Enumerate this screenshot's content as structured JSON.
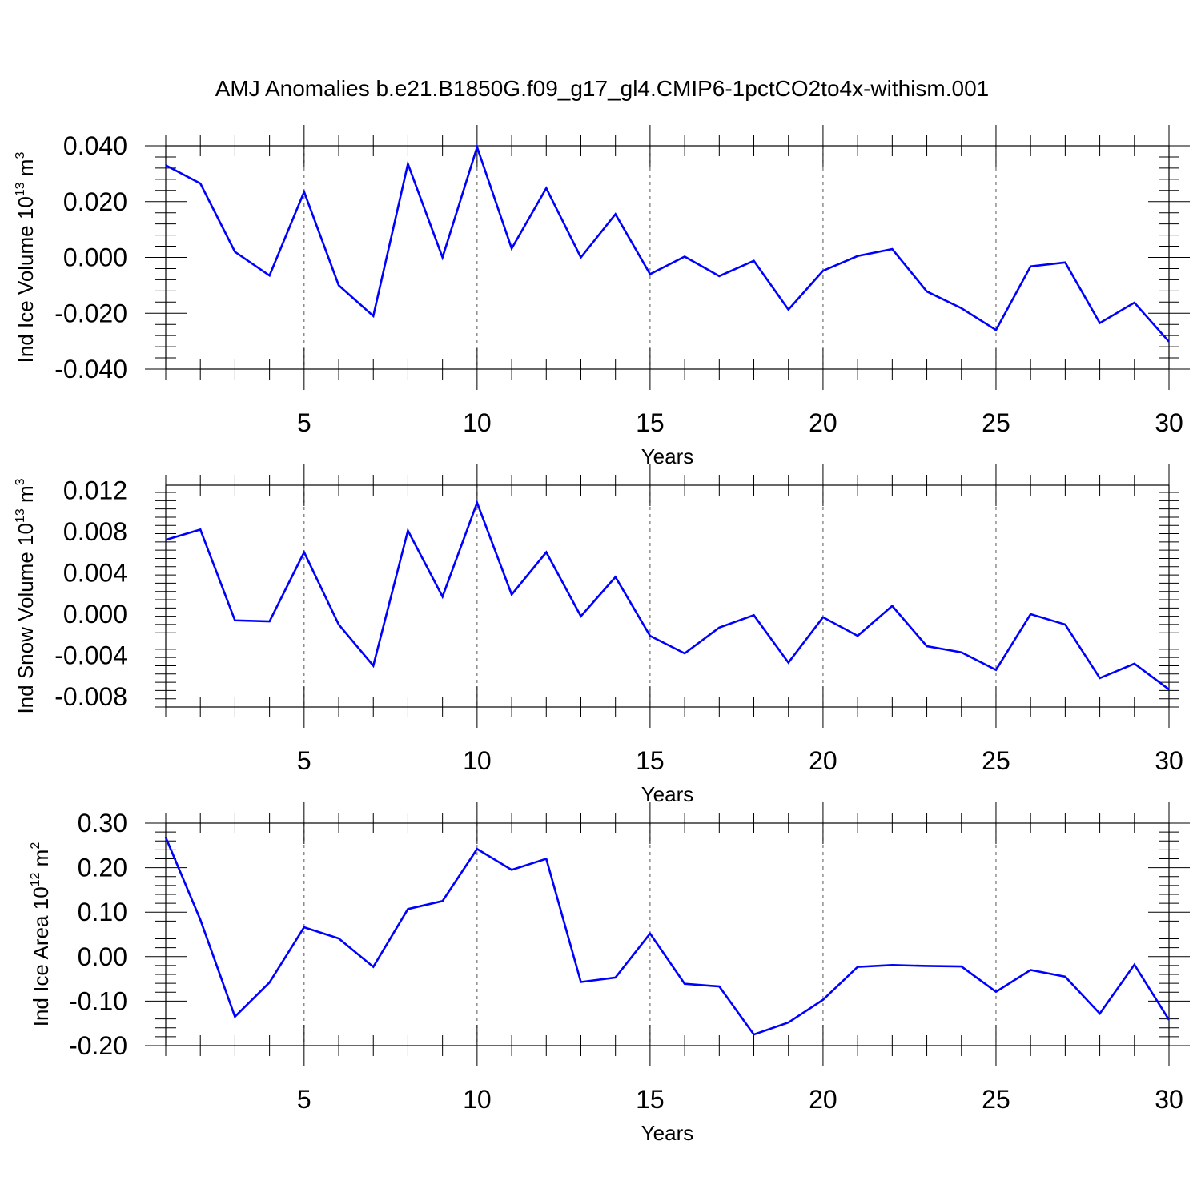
{
  "figure": {
    "title": "AMJ Anomalies b.e21.B1850G.f09_g17_gl4.CMIP6-1pctCO2to4x-withism.001"
  },
  "chart_data": [
    {
      "type": "line",
      "ylabel": {
        "text": "Ind Ice Volume 10",
        "sup": "13",
        "unit": " m",
        "unit_sup": "3"
      },
      "xlabel": "Years",
      "xlim": [
        1,
        30
      ],
      "ylim": [
        -0.04,
        0.04
      ],
      "x_ticks": [
        5,
        10,
        15,
        20,
        25,
        30
      ],
      "x_tick_labels": [
        "5",
        "10",
        "15",
        "20",
        "25",
        "30"
      ],
      "y_ticks": [
        -0.04,
        -0.02,
        0,
        0.02,
        0.04
      ],
      "y_tick_labels": [
        "-0.040",
        "-0.020",
        "0.000",
        "0.020",
        "0.040"
      ],
      "grid": "vertical dashed at major x ticks",
      "series": [
        {
          "color": "#0000ff",
          "x": [
            1,
            2,
            3,
            4,
            5,
            6,
            7,
            8,
            9,
            10,
            11,
            12,
            13,
            14,
            15,
            16,
            17,
            18,
            19,
            20,
            21,
            22,
            23,
            24,
            25,
            26,
            27,
            28,
            29,
            30
          ],
          "values": [
            0.033,
            0.0265,
            0.002,
            -0.0065,
            0.0235,
            -0.01,
            -0.021,
            0.0335,
            0.0,
            0.0395,
            0.0032,
            0.0248,
            0.0,
            0.0155,
            -0.006,
            0.0003,
            -0.0067,
            -0.0012,
            -0.0187,
            -0.0048,
            0.0005,
            0.003,
            -0.0122,
            -0.0182,
            -0.026,
            -0.0032,
            -0.0018,
            -0.0235,
            -0.0162,
            -0.0302
          ]
        }
      ]
    },
    {
      "type": "line",
      "ylabel": {
        "text": "Ind Snow Volume 10",
        "sup": "13",
        "unit": " m",
        "unit_sup": "3"
      },
      "xlabel": "Years",
      "xlim": [
        1,
        30
      ],
      "ylim": [
        -0.009,
        0.0125
      ],
      "x_ticks": [
        5,
        10,
        15,
        20,
        25,
        30
      ],
      "x_tick_labels": [
        "5",
        "10",
        "15",
        "20",
        "25",
        "30"
      ],
      "y_ticks": [
        -0.008,
        -0.004,
        0,
        0.004,
        0.008,
        0.012
      ],
      "y_tick_labels": [
        "-0.008",
        "-0.004",
        "0.000",
        "0.004",
        "0.008",
        "0.012"
      ],
      "grid": "vertical dashed at major x ticks",
      "series": [
        {
          "color": "#0000ff",
          "x": [
            1,
            2,
            3,
            4,
            5,
            6,
            7,
            8,
            9,
            10,
            11,
            12,
            13,
            14,
            15,
            16,
            17,
            18,
            19,
            20,
            21,
            22,
            23,
            24,
            25,
            26,
            27,
            28,
            29,
            30
          ],
          "values": [
            0.0072,
            0.0082,
            -0.0006,
            -0.0007,
            0.006,
            -0.001,
            -0.005,
            0.0081,
            0.0017,
            0.0108,
            0.0019,
            0.006,
            -0.0002,
            0.0036,
            -0.0021,
            -0.0038,
            -0.0013,
            -0.0001,
            -0.0047,
            -0.0003,
            -0.0021,
            0.0008,
            -0.0031,
            -0.0037,
            -0.0054,
            0.0,
            -0.001,
            -0.0062,
            -0.0048,
            -0.0073
          ]
        }
      ]
    },
    {
      "type": "line",
      "ylabel": {
        "text": "Ind Ice Area 10",
        "sup": "12",
        "unit": " m",
        "unit_sup": "2"
      },
      "xlabel": "Years",
      "xlim": [
        1,
        30
      ],
      "ylim": [
        -0.2,
        0.3
      ],
      "x_ticks": [
        5,
        10,
        15,
        20,
        25,
        30
      ],
      "x_tick_labels": [
        "5",
        "10",
        "15",
        "20",
        "25",
        "30"
      ],
      "y_ticks": [
        -0.2,
        -0.1,
        0,
        0.1,
        0.2,
        0.3
      ],
      "y_tick_labels": [
        "-0.20",
        "-0.10",
        "0.00",
        "0.10",
        "0.20",
        "0.30"
      ],
      "grid": "vertical dashed at major x ticks",
      "series": [
        {
          "color": "#0000ff",
          "x": [
            1,
            2,
            3,
            4,
            5,
            6,
            7,
            8,
            9,
            10,
            11,
            12,
            13,
            14,
            15,
            16,
            17,
            18,
            19,
            20,
            21,
            22,
            23,
            24,
            25,
            26,
            27,
            28,
            29,
            30
          ],
          "values": [
            0.268,
            0.083,
            -0.135,
            -0.058,
            0.066,
            0.041,
            -0.023,
            0.107,
            0.125,
            0.242,
            0.195,
            0.22,
            -0.057,
            -0.047,
            0.052,
            -0.061,
            -0.067,
            -0.175,
            -0.148,
            -0.097,
            -0.023,
            -0.019,
            -0.021,
            -0.022,
            -0.079,
            -0.03,
            -0.045,
            -0.128,
            -0.018,
            -0.142
          ]
        }
      ]
    }
  ]
}
